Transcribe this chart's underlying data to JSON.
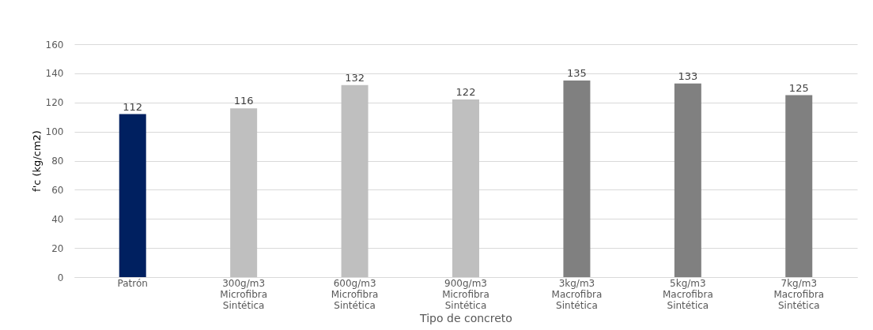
{
  "chart_data": {
    "type": "bar",
    "xlabel": "Tipo de concreto",
    "ylabel": "f'c (kg/cm2)",
    "categories": [
      "Patrón",
      "300g/m3\nMicrofibra\nSintética",
      "600g/m3\nMicrofibra\nSintética",
      "900g/m3\nMicrofibra\nSintética",
      "3kg/m3\nMacrofibra\nSintética",
      "5kg/m3\nMacrofibra\nSintética",
      "7kg/m3\nMacrofibra\nSintética"
    ],
    "values": [
      112,
      116,
      132,
      122,
      135,
      133,
      125
    ],
    "colors": [
      "#002060",
      "#bfbfbf",
      "#bfbfbf",
      "#bfbfbf",
      "#808080",
      "#808080",
      "#808080"
    ],
    "ylim": [
      0,
      160
    ],
    "yticks": [
      0,
      20,
      40,
      60,
      80,
      100,
      120,
      140,
      160
    ],
    "grid": "y",
    "data_labels": true
  }
}
